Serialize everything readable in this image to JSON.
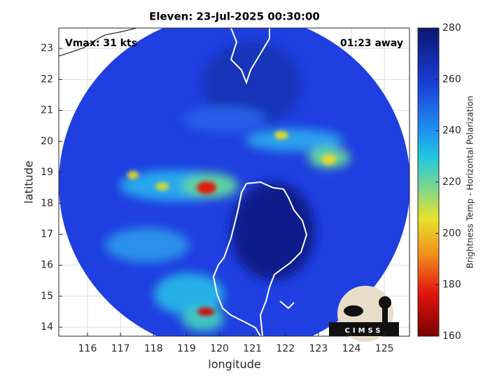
{
  "title": "Eleven: 23-Jul-2025 00:30:00",
  "annotations": {
    "vmax": "Vmax: 31 kts",
    "time_away": "01:23 away"
  },
  "x_axis": {
    "label": "longitude",
    "lim": [
      115.13,
      125.76
    ],
    "ticks": [
      116,
      117,
      118,
      119,
      120,
      121,
      122,
      123,
      124,
      125
    ]
  },
  "y_axis": {
    "label": "latitude",
    "lim": [
      13.71,
      23.66
    ],
    "ticks": [
      14,
      15,
      16,
      17,
      18,
      19,
      20,
      21,
      22,
      23
    ]
  },
  "colorbar": {
    "label": "Brightness Temp - Horizontal Polarization",
    "lim": [
      160,
      280
    ],
    "ticks": [
      160,
      180,
      200,
      220,
      240,
      260,
      280
    ]
  },
  "logo_text": "CIMSS"
}
